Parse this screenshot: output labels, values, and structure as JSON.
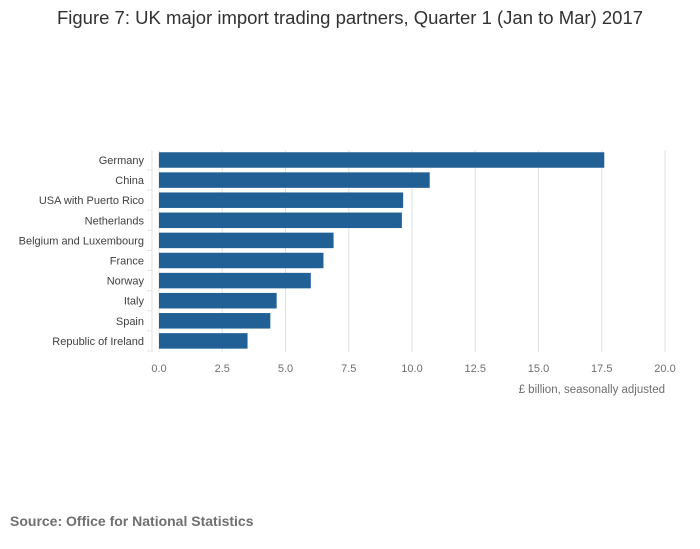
{
  "header": {
    "title": "Figure 7: UK major import trading partners, Quarter 1 (Jan to Mar) 2017"
  },
  "footer": {
    "source": "Source: Office for National Statistics"
  },
  "colors": {
    "bar": "#206095",
    "grid": "#e2e2e3",
    "text": "#414042",
    "muted": "#6f6f6f"
  },
  "chart_data": {
    "type": "bar",
    "orientation": "horizontal",
    "categories": [
      "Germany",
      "China",
      "USA with Puerto Rico",
      "Netherlands",
      "Belgium and Luxembourg",
      "France",
      "Norway",
      "Italy",
      "Spain",
      "Republic of Ireland"
    ],
    "values": [
      17.6,
      10.7,
      9.65,
      9.6,
      6.9,
      6.5,
      6.0,
      4.65,
      4.4,
      3.5
    ],
    "xlabel": "£ billion, seasonally adjusted",
    "ylabel": "",
    "xlim": [
      0,
      20
    ],
    "x_ticks": [
      "0.0",
      "2.5",
      "5.0",
      "7.5",
      "10.0",
      "12.5",
      "15.0",
      "17.5",
      "20.0"
    ],
    "grid": "vertical",
    "legend": "none"
  }
}
